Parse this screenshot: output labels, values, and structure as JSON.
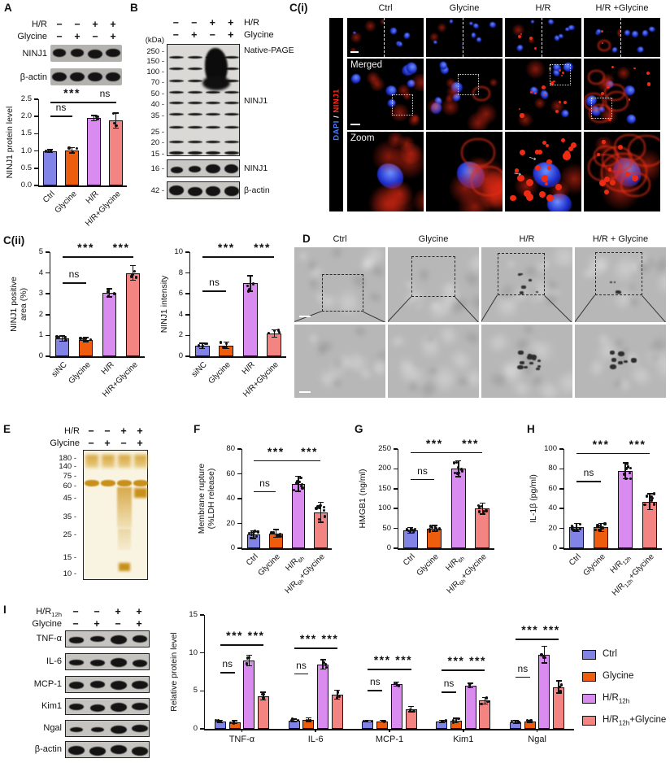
{
  "colors": {
    "ctrl": "#8183e6",
    "glycine": "#ee5c0d",
    "hr": "#d98bf0",
    "hr_glycine": "#f48482",
    "dapi_blue": "#4a7cff",
    "ninj1_red": "#ff2a1a"
  },
  "panels": {
    "A": {
      "label": "A",
      "treatment_rows": [
        {
          "name": "H/R",
          "signs": [
            "−",
            "−",
            "+",
            "+"
          ]
        },
        {
          "name": "Glycine",
          "signs": [
            "−",
            "+",
            "−",
            "+"
          ]
        }
      ],
      "blots": [
        {
          "label": "NINJ1",
          "intensities": [
            0.75,
            0.7,
            1,
            0.95
          ]
        },
        {
          "label": "β-actin",
          "intensities": [
            1,
            1,
            1,
            1
          ]
        }
      ]
    },
    "B": {
      "label": "B",
      "kda_label": "(kDa)",
      "treatment_rows": [
        {
          "name": "H/R",
          "signs": [
            "−",
            "−",
            "+",
            "+"
          ]
        },
        {
          "name": "Glycine",
          "signs": [
            "−",
            "+",
            "−",
            "+"
          ]
        }
      ],
      "ladder": [
        "250",
        "150",
        "100",
        "70",
        "50",
        "40",
        "35",
        "25",
        "20",
        "15"
      ],
      "native_label": "Native-PAGE",
      "gel_protein_label": "NINJ1",
      "small_blots": [
        {
          "marker": "16",
          "label": "NINJ1",
          "intensities": [
            0.25,
            0.25,
            1,
            0.9
          ]
        },
        {
          "marker": "42",
          "label": "β-actin",
          "intensities": [
            1,
            1,
            1,
            1
          ]
        }
      ]
    },
    "Ci": {
      "label": "C(i)",
      "columns": [
        "Ctrl",
        "Glycine",
        "H/R",
        "H/R +Glycine"
      ],
      "side_label": {
        "dapi": "DAPI",
        "sep": " / ",
        "ninj1": "NINJ1"
      },
      "row_labels": [
        "Merged",
        "Zoom"
      ]
    },
    "Cii": {
      "label": "C(ii)"
    },
    "D": {
      "label": "D",
      "columns": [
        "Ctrl",
        "Glycine",
        "H/R",
        "H/R + Glycine"
      ]
    },
    "E": {
      "label": "E",
      "treatment_rows": [
        {
          "name": "H/R",
          "signs": [
            "−",
            "−",
            "+",
            "+"
          ]
        },
        {
          "name": "Glycine",
          "signs": [
            "−",
            "+",
            "−",
            "+"
          ]
        }
      ],
      "ladder": [
        "180",
        "140",
        "75",
        "60",
        "45",
        "35",
        "25",
        "15",
        "10"
      ]
    },
    "F": {
      "label": "F"
    },
    "G": {
      "label": "G"
    },
    "H": {
      "label": "H"
    },
    "I": {
      "label": "I",
      "treatment_rows": [
        {
          "name": "H/R~12h~",
          "signs": [
            "−",
            "−",
            "+",
            "+"
          ]
        },
        {
          "name": "Glycine",
          "signs": [
            "−",
            "+",
            "−",
            "+"
          ]
        }
      ],
      "blots": [
        {
          "label": "TNF-α",
          "intensities": [
            0.2,
            0.2,
            1,
            0.55
          ]
        },
        {
          "label": "IL-6",
          "intensities": [
            0.3,
            0.35,
            1,
            0.6
          ]
        },
        {
          "label": "MCP-1",
          "intensities": [
            0.55,
            0.55,
            1,
            0.75
          ]
        },
        {
          "label": "Kim1",
          "intensities": [
            0.5,
            0.5,
            1,
            0.65
          ]
        },
        {
          "label": "Ngal",
          "intensities": [
            0.05,
            0.08,
            1,
            0.7
          ]
        },
        {
          "label": "β-actin",
          "intensities": [
            1,
            1,
            1,
            1
          ]
        }
      ],
      "legend": [
        {
          "label": "Ctrl",
          "color": "ctrl"
        },
        {
          "label": "Glycine",
          "color": "glycine"
        },
        {
          "label": "H/R~12h~",
          "color": "hr"
        },
        {
          "label": "H/R~12h~+Glycine",
          "color": "hr_glycine"
        }
      ]
    }
  },
  "chart_data": [
    {
      "id": "A",
      "type": "bar",
      "ylabel": "NINJ1 protein level",
      "ylim": [
        0,
        2.5
      ],
      "yticks": [
        "0.0",
        "0.5",
        "1.0",
        "1.5",
        "2.0",
        "2.5"
      ],
      "categories": [
        "Ctrl",
        "Glycine",
        "H/R",
        "H/R+Glycine"
      ],
      "values": [
        1.0,
        1.02,
        1.95,
        1.88
      ],
      "errors": [
        0.04,
        0.08,
        0.08,
        0.22
      ],
      "n_dots": 3,
      "colors": [
        "ctrl",
        "glycine",
        "hr",
        "hr_glycine"
      ],
      "sig": [
        {
          "a": 0,
          "b": 1,
          "y": 2.02,
          "t": "ns"
        },
        {
          "a": 0,
          "b": 2,
          "y": 2.42,
          "t": "***"
        },
        {
          "a": 2,
          "b": 3,
          "y": 2.42,
          "t": "ns"
        }
      ]
    },
    {
      "id": "Cii_area",
      "type": "bar",
      "ylabel": "NINJ1 positive\narea (%)",
      "ylim": [
        0,
        5
      ],
      "yticks": [
        "0",
        "1",
        "2",
        "3",
        "4",
        "5"
      ],
      "categories": [
        "siNC",
        "Glycine",
        "H/R",
        "H/R+Glycine"
      ],
      "values": [
        0.85,
        0.8,
        3.05,
        4.0
      ],
      "errors": [
        0.12,
        0.1,
        0.2,
        0.35
      ],
      "n_dots": 4,
      "colors": [
        "ctrl",
        "glycine",
        "hr",
        "hr_glycine"
      ],
      "sig": [
        {
          "a": 0,
          "b": 1,
          "y": 3.55,
          "t": "ns"
        },
        {
          "a": 0,
          "b": 2,
          "y": 4.8,
          "t": "***"
        },
        {
          "a": 2,
          "b": 3,
          "y": 4.8,
          "t": "***"
        }
      ]
    },
    {
      "id": "Cii_int",
      "type": "bar",
      "ylabel": "NINJ1 intensity",
      "ylim": [
        0,
        10
      ],
      "yticks": [
        "0",
        "2",
        "4",
        "6",
        "8",
        "10"
      ],
      "categories": [
        "siNC",
        "Glycine",
        "H/R",
        "H/R+Glycine"
      ],
      "values": [
        1.0,
        1.05,
        7.0,
        2.2
      ],
      "errors": [
        0.25,
        0.3,
        0.75,
        0.35
      ],
      "n_dots": 4,
      "colors": [
        "ctrl",
        "glycine",
        "hr",
        "hr_glycine"
      ],
      "sig": [
        {
          "a": 0,
          "b": 1,
          "y": 6.3,
          "t": "ns"
        },
        {
          "a": 0,
          "b": 2,
          "y": 9.6,
          "t": "***"
        },
        {
          "a": 2,
          "b": 3,
          "y": 9.6,
          "t": "***"
        }
      ]
    },
    {
      "id": "F",
      "type": "bar",
      "ylabel": "Membrane rupture\n(%LDH release)",
      "ylim": [
        0,
        80
      ],
      "yticks": [
        "0",
        "20",
        "40",
        "60",
        "80"
      ],
      "categories": [
        "Ctrl",
        "Glycine",
        "H/R~6h~",
        "H/R~6h~+Glycine"
      ],
      "values": [
        11,
        12,
        52,
        29
      ],
      "errors": [
        3,
        3,
        6,
        8
      ],
      "n_dots": 8,
      "colors": [
        "ctrl",
        "glycine",
        "hr",
        "hr_glycine"
      ],
      "sig": [
        {
          "a": 0,
          "b": 1,
          "y": 46,
          "t": "ns"
        },
        {
          "a": 0,
          "b": 2,
          "y": 71,
          "t": "***"
        },
        {
          "a": 2,
          "b": 3,
          "y": 71,
          "t": "***"
        }
      ]
    },
    {
      "id": "G",
      "type": "bar",
      "ylabel": "HMGB1 (ng/ml)",
      "ylim": [
        0,
        250
      ],
      "yticks": [
        "0",
        "50",
        "100",
        "150",
        "200",
        "250"
      ],
      "categories": [
        "Ctrl",
        "Glycine",
        "H/R~6h~",
        "H/R~6h~+Glycine"
      ],
      "values": [
        45,
        50,
        200,
        100
      ],
      "errors": [
        7,
        7,
        20,
        14
      ],
      "n_dots": 8,
      "colors": [
        "ctrl",
        "glycine",
        "hr",
        "hr_glycine"
      ],
      "sig": [
        {
          "a": 0,
          "b": 1,
          "y": 175,
          "t": "ns"
        },
        {
          "a": 0,
          "b": 2,
          "y": 242,
          "t": "***"
        },
        {
          "a": 2,
          "b": 3,
          "y": 242,
          "t": "***"
        }
      ]
    },
    {
      "id": "H",
      "type": "bar",
      "ylabel": "IL-1β (pg/ml)",
      "ylim": [
        0,
        100
      ],
      "yticks": [
        "0",
        "20",
        "40",
        "60",
        "80",
        "100"
      ],
      "categories": [
        "Ctrl",
        "Glycine",
        "H/R~12h~",
        "H/R~12h~+Glycine"
      ],
      "values": [
        21,
        21,
        78,
        47
      ],
      "errors": [
        4,
        4,
        8,
        8
      ],
      "n_dots": 8,
      "colors": [
        "ctrl",
        "glycine",
        "hr",
        "hr_glycine"
      ],
      "sig": [
        {
          "a": 0,
          "b": 1,
          "y": 68,
          "t": "ns"
        },
        {
          "a": 0,
          "b": 2,
          "y": 96,
          "t": "***"
        },
        {
          "a": 2,
          "b": 3,
          "y": 96,
          "t": "***"
        }
      ]
    },
    {
      "id": "I",
      "type": "grouped_bar",
      "ylabel": "Relative protein level",
      "ylim": [
        0,
        15
      ],
      "yticks": [
        "0",
        "5",
        "10",
        "15"
      ],
      "categories": [
        "TNF-α",
        "IL-6",
        "MCP-1",
        "Kim1",
        "Ngal"
      ],
      "series": [
        {
          "name": "Ctrl",
          "color": "ctrl",
          "values": [
            1.0,
            1.1,
            1.0,
            1.0,
            0.9
          ],
          "errors": [
            0.15,
            0.2,
            0.1,
            0.12,
            0.15
          ]
        },
        {
          "name": "Glycine",
          "color": "glycine",
          "values": [
            0.9,
            1.2,
            1.0,
            1.1,
            1.0
          ],
          "errors": [
            0.15,
            0.25,
            0.1,
            0.3,
            0.12
          ]
        },
        {
          "name": "H/R~12h~",
          "color": "hr",
          "values": [
            9.0,
            8.5,
            5.9,
            5.7,
            9.8
          ],
          "errors": [
            0.7,
            0.6,
            0.25,
            0.3,
            1.1
          ]
        },
        {
          "name": "H/R~12h~+Glycine",
          "color": "hr_glycine",
          "values": [
            4.3,
            4.5,
            2.6,
            3.7,
            5.5
          ],
          "errors": [
            0.5,
            0.6,
            0.35,
            0.45,
            0.8
          ]
        }
      ],
      "n_dots": 3,
      "legend_position": "right",
      "sig": [
        {
          "g": 0,
          "a": 0,
          "b": 1,
          "y": 7.5,
          "t": "ns"
        },
        {
          "g": 0,
          "a": 0,
          "b": 2,
          "y": 11.1,
          "t": "***"
        },
        {
          "g": 0,
          "a": 2,
          "b": 3,
          "y": 11.1,
          "t": "***"
        },
        {
          "g": 1,
          "a": 0,
          "b": 1,
          "y": 7.3,
          "t": "ns"
        },
        {
          "g": 1,
          "a": 0,
          "b": 2,
          "y": 10.7,
          "t": "***"
        },
        {
          "g": 1,
          "a": 2,
          "b": 3,
          "y": 10.7,
          "t": "***"
        },
        {
          "g": 2,
          "a": 0,
          "b": 1,
          "y": 5.1,
          "t": "ns"
        },
        {
          "g": 2,
          "a": 0,
          "b": 2,
          "y": 7.9,
          "t": "***"
        },
        {
          "g": 2,
          "a": 2,
          "b": 3,
          "y": 7.9,
          "t": "***"
        },
        {
          "g": 3,
          "a": 0,
          "b": 1,
          "y": 4.9,
          "t": "ns"
        },
        {
          "g": 3,
          "a": 0,
          "b": 2,
          "y": 7.8,
          "t": "***"
        },
        {
          "g": 3,
          "a": 2,
          "b": 3,
          "y": 7.8,
          "t": "***"
        },
        {
          "g": 4,
          "a": 0,
          "b": 1,
          "y": 6.9,
          "t": "ns"
        },
        {
          "g": 4,
          "a": 0,
          "b": 2,
          "y": 11.9,
          "t": "***"
        },
        {
          "g": 4,
          "a": 2,
          "b": 3,
          "y": 11.9,
          "t": "***"
        }
      ]
    }
  ]
}
